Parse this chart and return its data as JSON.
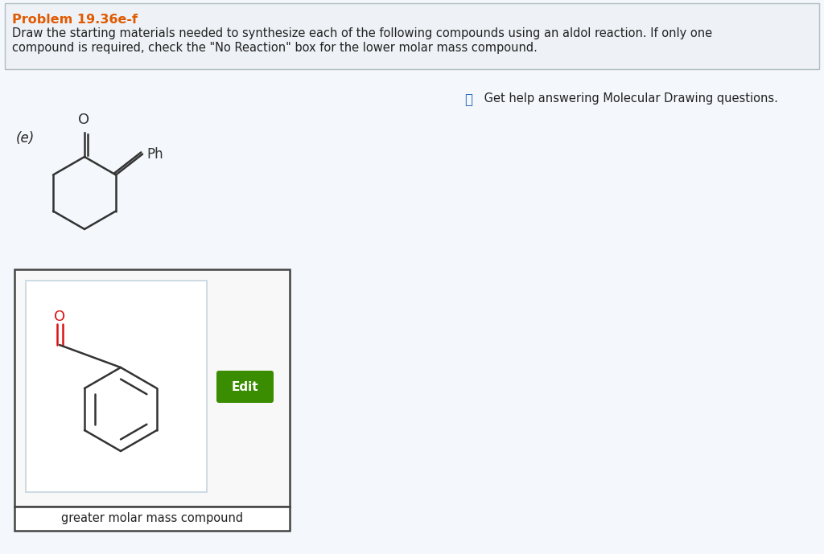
{
  "title": "Problem 19.36e-f",
  "title_color": "#e05a00",
  "description_line1": "Draw the starting materials needed to synthesize each of the following compounds using an aldol reaction. If only one",
  "description_line2": "compound is required, check the \"No Reaction\" box for the lower molar mass compound.",
  "help_icon": "❓",
  "help_text": " Get help answering Molecular Drawing questions.",
  "label_e": "(e)",
  "edit_button_text": "Edit",
  "edit_button_color": "#3a8c00",
  "footer_text": "greater molar mass compound",
  "bg_color": "#f4f7fb",
  "white": "#ffffff",
  "header_bg": "#eef1f6",
  "header_border": "#b0bec5",
  "outer_box_border": "#444444",
  "inner_box_border": "#c5d5e0",
  "text_dark": "#222222",
  "text_gray": "#444444",
  "bond_color": "#333333",
  "cho_color": "#dd1111",
  "mol_color": "#333333"
}
